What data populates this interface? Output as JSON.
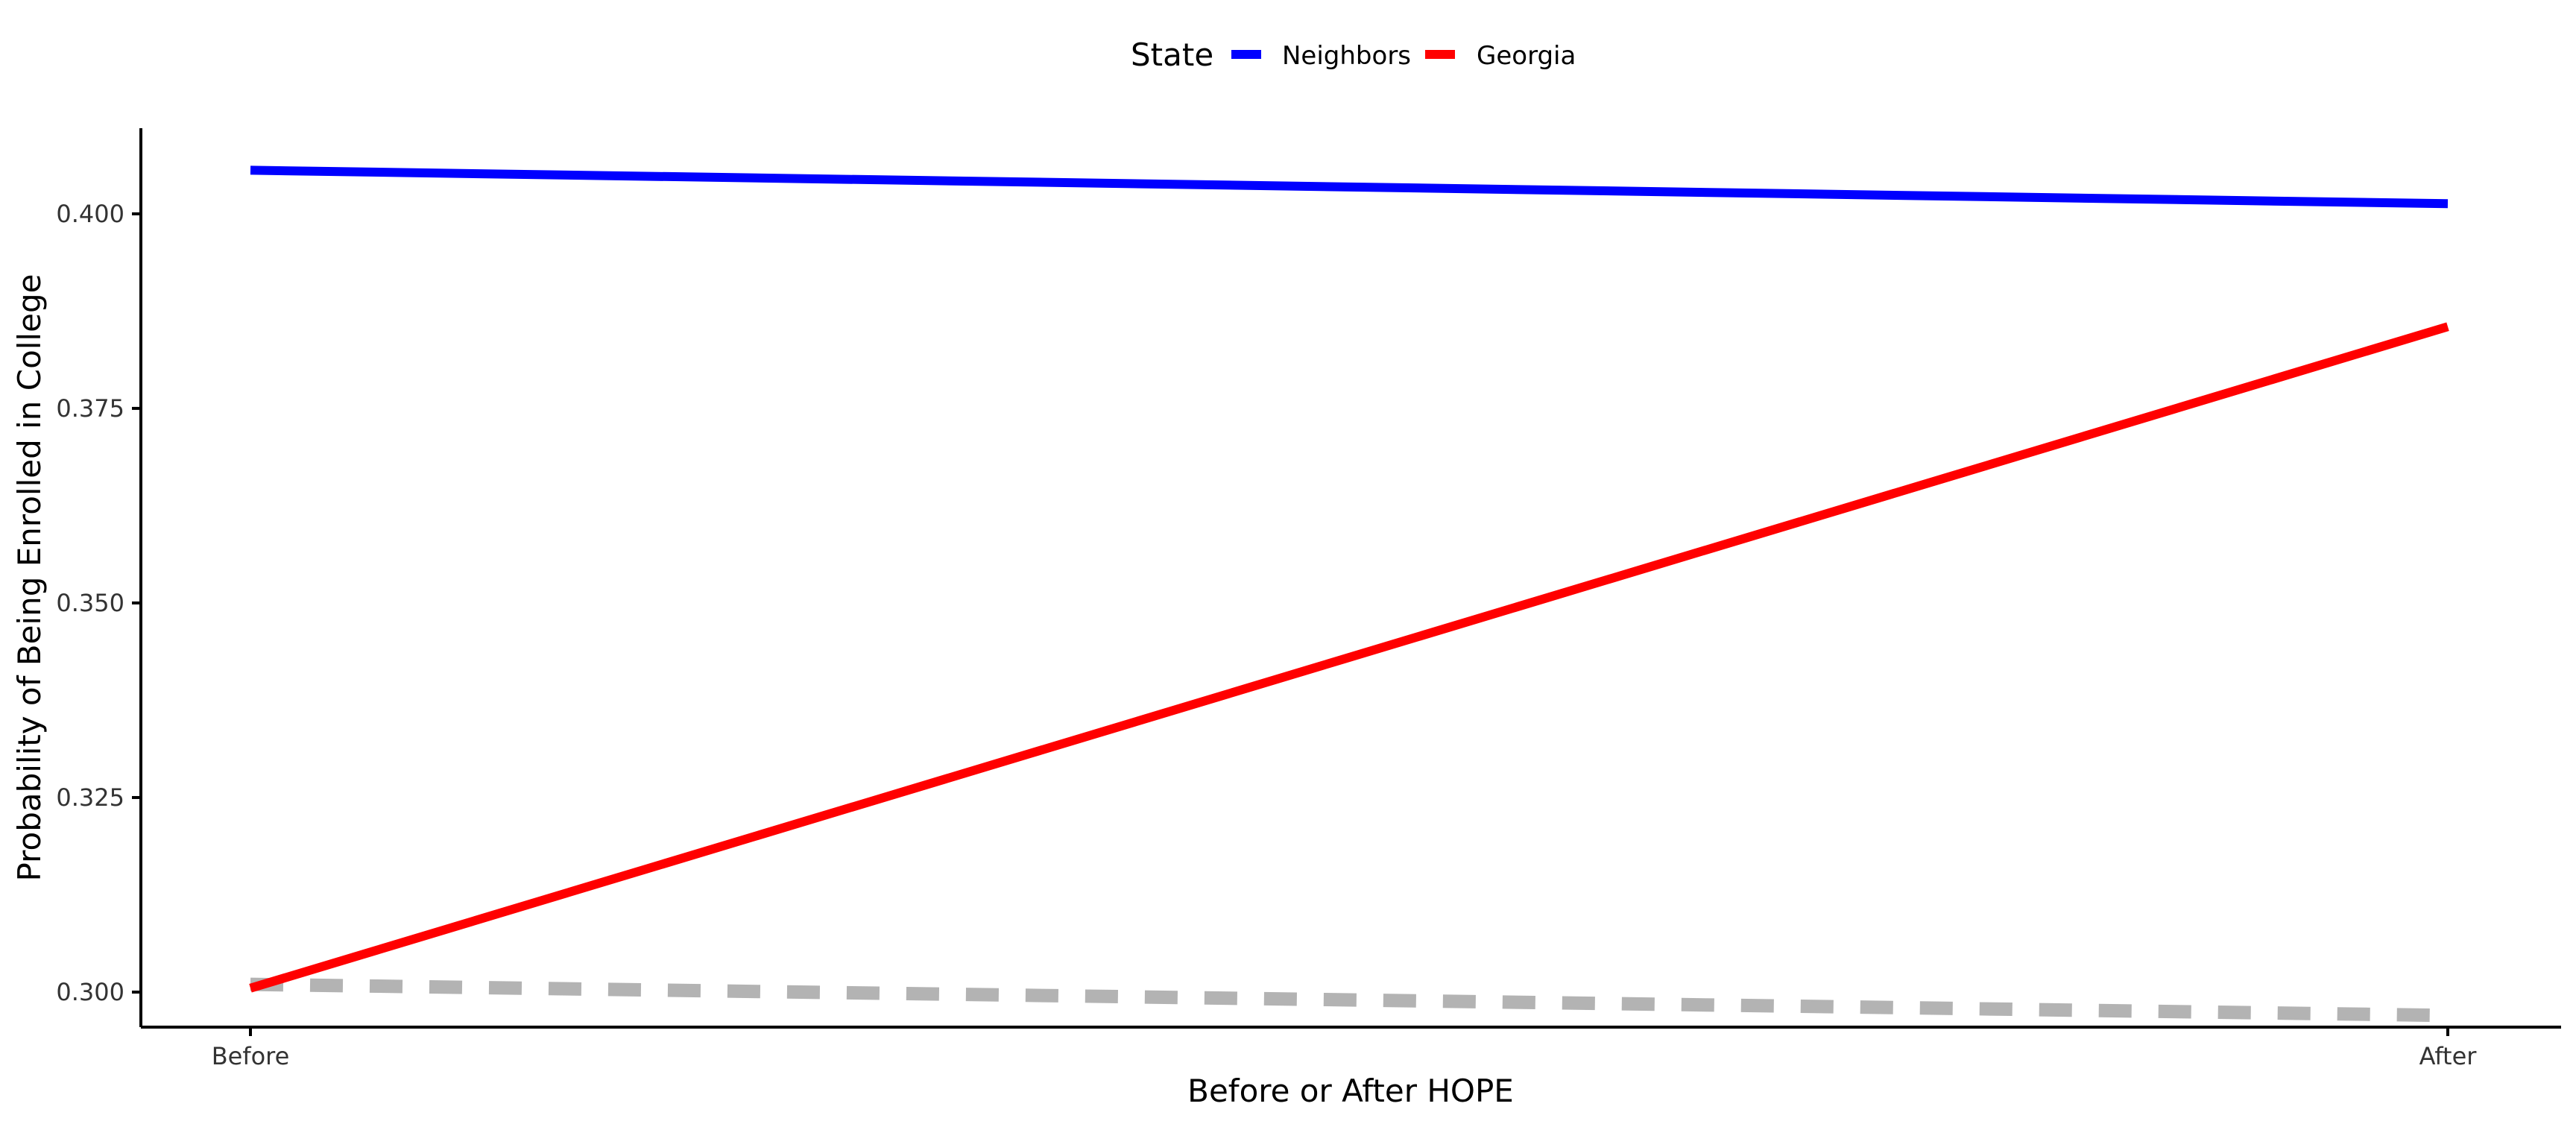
{
  "chart_data": {
    "type": "line",
    "title": "",
    "xlabel": "Before or After HOPE",
    "ylabel": "Probability of Being Enrolled in College",
    "categories": [
      "Before",
      "After"
    ],
    "y_ticks": [
      0.3,
      0.325,
      0.35,
      0.375,
      0.4
    ],
    "y_tick_labels": [
      "0.300",
      "0.325",
      "0.350",
      "0.375",
      "0.400"
    ],
    "ylim": [
      0.2955,
      0.411
    ],
    "legend": {
      "title": "State",
      "placement": "top",
      "entries": [
        "Neighbors",
        "Georgia"
      ]
    },
    "series": [
      {
        "name": "Neighbors",
        "values": [
          0.4056,
          0.4013
        ],
        "color": "#0000ff",
        "style": "solid"
      },
      {
        "name": "Georgia",
        "values": [
          0.3005,
          0.3855
        ],
        "color": "#ff0000",
        "style": "solid"
      },
      {
        "values": [
          0.301,
          0.297
        ],
        "color": "#b3b3b3",
        "style": "dashed"
      }
    ],
    "grid": false
  }
}
